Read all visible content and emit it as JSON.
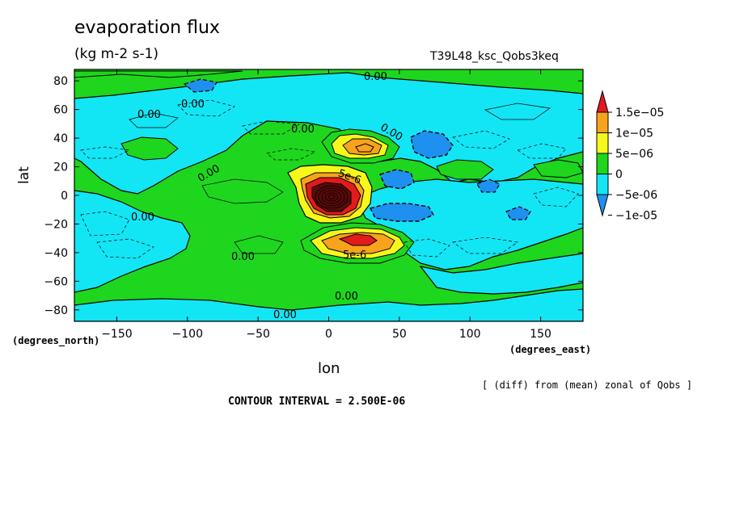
{
  "chart_data": {
    "type": "heatmap",
    "title": "evaporation flux",
    "units": "(kg m-2 s-1)",
    "run_name": "T39L48_ksc_Qobs3keq",
    "xlabel": "lon",
    "ylabel": "lat",
    "x_units": "(degrees_east)",
    "y_units": "(degrees_north)",
    "xlim": [
      -180,
      180
    ],
    "ylim": [
      -88,
      88
    ],
    "x_ticks": [
      -150,
      -100,
      -50,
      0,
      50,
      100,
      150
    ],
    "y_ticks": [
      80,
      60,
      40,
      20,
      0,
      -20,
      -40,
      -60,
      -80
    ],
    "contour_labels": [
      "0.00",
      "0.00",
      "0.00",
      "0.00",
      "0.00",
      "0.00",
      "0.00",
      "0.00",
      "0.00",
      "0.00",
      "5e-6",
      "5e-6"
    ],
    "colorbar": {
      "levels": [
        "1.5e-05",
        "1e-05",
        "5e-06",
        "0",
        "-5e-06",
        "-1e-05"
      ],
      "colors": [
        "#e31a1c",
        "#f7a31b",
        "#f7f71b",
        "#1ed61e",
        "#12e6f5",
        "#1e90f0"
      ]
    },
    "features": [
      {
        "type": "max",
        "lon": 10,
        "lat": -2,
        "value": 2.5e-05
      },
      {
        "type": "max",
        "lon": 25,
        "lat": 30,
        "value": 1.2e-05
      },
      {
        "type": "max",
        "lon": 25,
        "lat": -30,
        "value": 1.5e-05
      },
      {
        "type": "min",
        "lon": 70,
        "lat": 32,
        "value": -7.5e-06
      },
      {
        "type": "min",
        "lon": 50,
        "lat": 15,
        "value": -6e-06
      },
      {
        "type": "min",
        "lon": 60,
        "lat": -12,
        "value": -7.5e-06
      },
      {
        "type": "min",
        "lon": 115,
        "lat": 8,
        "value": -5e-06
      },
      {
        "type": "min",
        "lon": 135,
        "lat": -16,
        "value": -5e-06
      },
      {
        "type": "min",
        "lon": -70,
        "lat": 70,
        "value": -5e-06
      },
      {
        "type": "max",
        "lon": 90,
        "lat": 18,
        "value": 6e-06
      }
    ]
  },
  "footer": {
    "note": "[ (diff) from (mean) zonal of Qobs ]",
    "contour_interval": "CONTOUR INTERVAL = 2.500E-06"
  }
}
